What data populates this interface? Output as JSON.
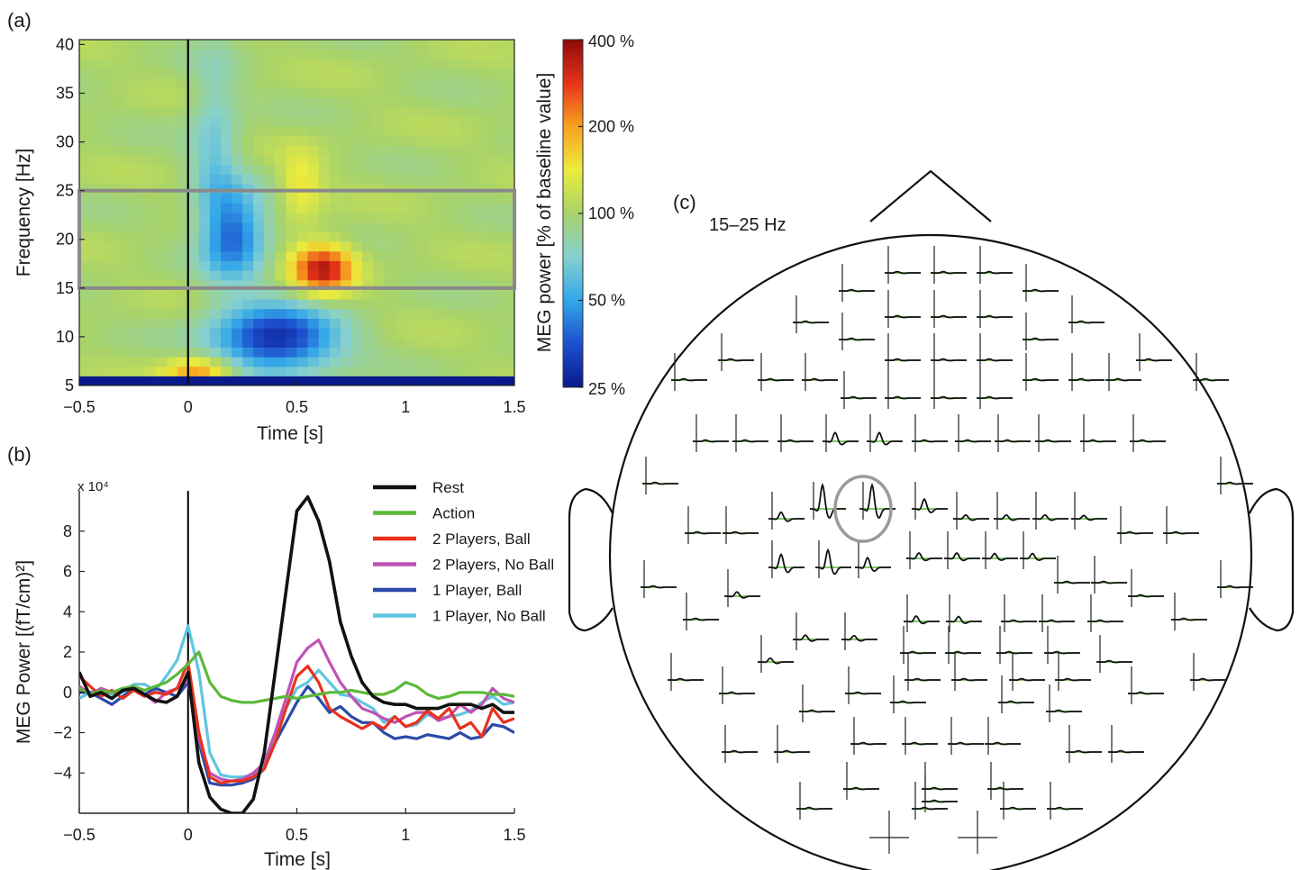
{
  "chart_data": [
    {
      "panel": "(a)",
      "type": "heatmap",
      "title": "",
      "xlabel": "Time [s]",
      "ylabel": "Frequency [Hz]",
      "xlim": [
        -0.5,
        1.5
      ],
      "ylim": [
        5,
        40.5
      ],
      "xticks": [
        -0.5,
        0,
        0.5,
        1,
        1.5
      ],
      "xtick_labels": [
        "−0.5",
        "0",
        "0.5",
        "1",
        "1.5"
      ],
      "yticks": [
        5,
        10,
        15,
        20,
        25,
        30,
        35,
        40
      ],
      "ytick_labels": [
        "5",
        "10",
        "15",
        "20",
        "25",
        "30",
        "35",
        "40"
      ],
      "marker_line_x": 0,
      "highlight_band_hz": [
        15,
        25
      ],
      "colorbar": {
        "label": "MEG power [% of baseline value]",
        "tick_values": [
          400,
          200,
          100,
          50,
          25
        ],
        "tick_labels": [
          "400 %",
          "200 %",
          "100 %",
          "50 %",
          "25 %"
        ],
        "scale": "log",
        "colors": [
          "#0a1a8c",
          "#1d4fcf",
          "#33a8e8",
          "#86d0d0",
          "#a8d36a",
          "#ecec3c",
          "#f7a21f",
          "#e6341a",
          "#8c0b0b"
        ]
      },
      "blobs_percent_of_baseline": [
        {
          "time_s": 0.22,
          "freq_hz": 20.5,
          "peak": 40,
          "sigma_t": 0.1,
          "sigma_f": 3.2
        },
        {
          "time_s": 0.12,
          "freq_hz": 29,
          "peak": 65,
          "sigma_t": 0.08,
          "sigma_f": 7
        },
        {
          "time_s": 0.4,
          "freq_hz": 9.8,
          "peak": 28,
          "sigma_t": 0.2,
          "sigma_f": 2.4
        },
        {
          "time_s": 0.62,
          "freq_hz": 17,
          "peak": 330,
          "sigma_t": 0.1,
          "sigma_f": 1.8
        },
        {
          "time_s": 0.52,
          "freq_hz": 25.5,
          "peak": 150,
          "sigma_t": 0.07,
          "sigma_f": 2.5
        },
        {
          "time_s": 0.05,
          "freq_hz": 6.3,
          "peak": 220,
          "sigma_t": 0.11,
          "sigma_f": 1.2
        }
      ]
    },
    {
      "panel": "(b)",
      "type": "line",
      "title": "",
      "xlabel": "Time [s]",
      "ylabel": "MEG Power [(fT/cm)²]",
      "y_multiplier": "x 10⁴",
      "xlim": [
        -0.5,
        1.5
      ],
      "ylim": [
        -6,
        10
      ],
      "xticks": [
        -0.5,
        0,
        0.5,
        1,
        1.5
      ],
      "xtick_labels": [
        "−0.5",
        "0",
        "0.5",
        "1",
        "1.5"
      ],
      "yticks": [
        -4,
        -2,
        0,
        2,
        4,
        6,
        8
      ],
      "ytick_labels": [
        "−4",
        "−2",
        "0",
        "2",
        "4",
        "6",
        "8"
      ],
      "marker_line_x": 0,
      "legend_position": "top-right",
      "x": [
        -0.5,
        -0.45,
        -0.4,
        -0.35,
        -0.3,
        -0.25,
        -0.2,
        -0.15,
        -0.1,
        -0.05,
        0,
        0.05,
        0.1,
        0.15,
        0.2,
        0.25,
        0.3,
        0.35,
        0.4,
        0.45,
        0.5,
        0.55,
        0.6,
        0.65,
        0.7,
        0.75,
        0.8,
        0.85,
        0.9,
        0.95,
        1,
        1.05,
        1.1,
        1.15,
        1.2,
        1.25,
        1.3,
        1.35,
        1.4,
        1.45,
        1.5
      ],
      "series": [
        {
          "name": "Rest",
          "color": "#111111",
          "values": [
            1.0,
            -0.2,
            0.0,
            -0.3,
            0.1,
            0.2,
            -0.1,
            -0.4,
            -0.5,
            -0.2,
            1.0,
            -3.5,
            -5.2,
            -5.8,
            -6.0,
            -6.0,
            -5.3,
            -3.0,
            1.0,
            5.0,
            9.0,
            9.7,
            8.5,
            6.5,
            3.5,
            1.8,
            0.5,
            -0.2,
            -0.5,
            -0.6,
            -0.6,
            -0.8,
            -0.8,
            -0.8,
            -0.6,
            -0.6,
            -0.6,
            -0.8,
            -0.6,
            -1.0,
            -1.0
          ]
        },
        {
          "name": "Action",
          "color": "#5cb83a",
          "values": [
            0.2,
            -0.1,
            0.1,
            0.0,
            0.2,
            0.3,
            0.1,
            0.3,
            0.5,
            0.9,
            1.4,
            2.0,
            0.5,
            -0.2,
            -0.4,
            -0.5,
            -0.5,
            -0.4,
            -0.3,
            -0.2,
            -0.3,
            -0.2,
            -0.1,
            0.0,
            0.0,
            0.1,
            0.0,
            -0.1,
            -0.1,
            0.1,
            0.5,
            0.3,
            -0.1,
            -0.3,
            -0.2,
            0.0,
            0.0,
            0.0,
            -0.1,
            -0.1,
            -0.2
          ]
        },
        {
          "name": "2 Players, Ball",
          "color": "#e8311c",
          "values": [
            0.8,
            0.3,
            -0.2,
            0.1,
            -0.3,
            0.1,
            -0.2,
            0.0,
            -0.1,
            0.2,
            1.5,
            -2.0,
            -4.2,
            -4.5,
            -4.4,
            -4.4,
            -4.2,
            -3.8,
            -2.5,
            -0.8,
            0.8,
            1.3,
            0.5,
            -0.8,
            -1.2,
            -1.5,
            -1.8,
            -1.5,
            -1.8,
            -1.2,
            -1.7,
            -1.5,
            -0.9,
            -1.3,
            -0.8,
            -1.8,
            -1.5,
            -2.2,
            -0.8,
            -1.5,
            -1.3
          ]
        },
        {
          "name": "2 Players, No Ball",
          "color": "#bf52b5",
          "values": [
            0.3,
            -0.1,
            0.2,
            0.0,
            0.1,
            0.3,
            -0.1,
            -0.5,
            0.0,
            0.2,
            0.6,
            -2.3,
            -4.0,
            -4.3,
            -4.4,
            -4.3,
            -4.0,
            -3.5,
            -2.0,
            -0.3,
            1.5,
            2.2,
            2.6,
            1.5,
            0.5,
            -0.2,
            -0.8,
            -1.0,
            -1.3,
            -1.5,
            -1.2,
            -1.0,
            -1.0,
            -1.4,
            -1.2,
            -0.6,
            -1.0,
            -0.6,
            0.2,
            -0.3,
            -0.5
          ]
        },
        {
          "name": "1 Player, Ball",
          "color": "#2b4aa8",
          "values": [
            0.0,
            0.0,
            -0.3,
            -0.6,
            -0.2,
            0.2,
            -0.1,
            0.2,
            0.0,
            -0.2,
            0.5,
            -2.5,
            -4.5,
            -4.6,
            -4.6,
            -4.5,
            -4.3,
            -3.8,
            -2.5,
            -1.5,
            -0.5,
            0.3,
            -0.3,
            -1.0,
            -0.7,
            -1.2,
            -1.5,
            -1.5,
            -2.0,
            -2.3,
            -2.2,
            -2.3,
            -2.1,
            -2.2,
            -2.3,
            -2.0,
            -2.3,
            -2.2,
            -1.6,
            -1.7,
            -2.0
          ]
        },
        {
          "name": "1 Player, No Ball",
          "color": "#5fc6e0",
          "values": [
            -0.3,
            0.0,
            0.1,
            -0.1,
            0.0,
            0.4,
            0.4,
            0.1,
            0.8,
            1.6,
            3.3,
            1.0,
            -3.0,
            -4.1,
            -4.2,
            -4.2,
            -4.1,
            -3.6,
            -2.2,
            -0.8,
            0.2,
            0.5,
            1.1,
            0.5,
            -0.1,
            -0.2,
            -0.5,
            -0.8,
            -1.5,
            -1.2,
            -1.7,
            -1.6,
            -1.1,
            -1.3,
            -1.2,
            -1.1,
            -0.9,
            -0.5,
            -0.2,
            -0.6,
            -0.5
          ]
        }
      ]
    },
    {
      "panel": "(c)",
      "type": "topographic sensor plot",
      "title": "15–25 Hz",
      "sensor_trace_colors": [
        "#111111",
        "#5cb83a"
      ],
      "highlight_color": "#9a9a9a"
    }
  ]
}
